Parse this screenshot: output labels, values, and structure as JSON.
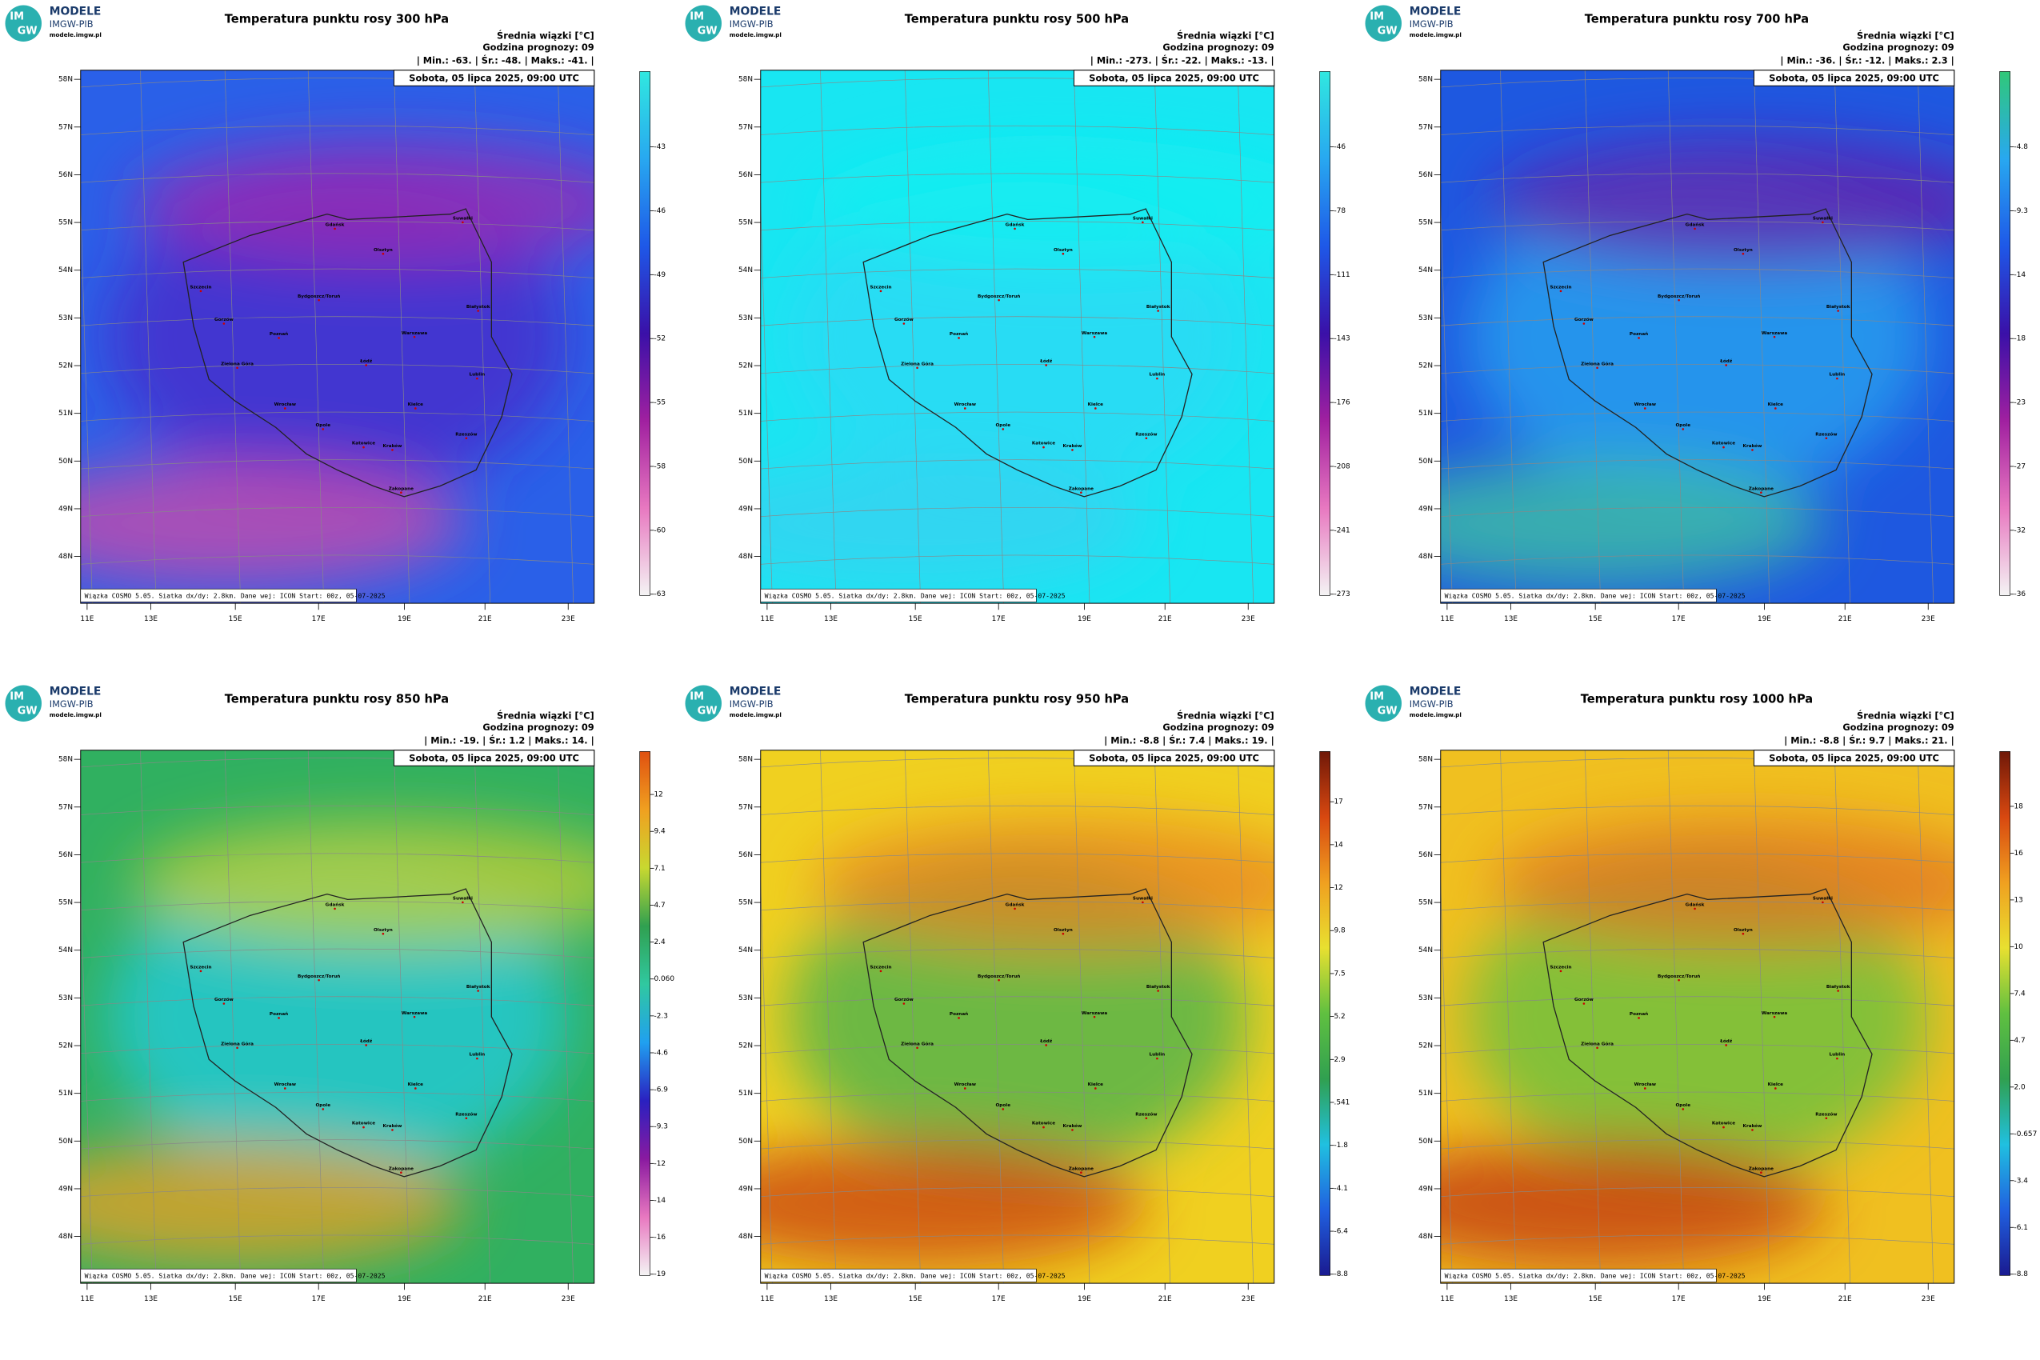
{
  "common": {
    "logo": {
      "mark_top": "IM",
      "mark_bottom": "GW",
      "name": "MODELE",
      "org": "IMGW-PIB",
      "url": "modele.imgw.pl"
    },
    "units": "Średnia wiązki [°C]",
    "forecast_hour": "Godzina prognozy: 09",
    "date": "Sobota, 05 lipca 2025, 09:00 UTC",
    "footer": "Wiązka COSMO 5.05. Siatka dx/dy: 2.8km. Dane wej: ICON Start: 00z, 05-07-2025",
    "lat_labels": [
      "58N",
      "57N",
      "56N",
      "55N",
      "54N",
      "53N",
      "52N",
      "51N",
      "50N",
      "49N",
      "48N"
    ],
    "lon_labels": [
      "11E",
      "13E",
      "15E",
      "17E",
      "19E",
      "21E",
      "23E"
    ],
    "cities": [
      "Gdańsk",
      "Olsztyn",
      "Suwałki",
      "Szczecin",
      "Bydgoszcz/Toruń",
      "Białystok",
      "Gorzów",
      "Poznań",
      "Warszawa",
      "Zielona Góra",
      "Łódź",
      "Lublin",
      "Wrocław",
      "Opole",
      "Kielce",
      "Rzeszów",
      "Katowice",
      "Kraków",
      "Zakopane"
    ]
  },
  "panels": [
    {
      "title": "Temperatura punktu rosy 300 hPa",
      "stats": "| Min.: -63. | Śr.: -48. | Maks.: -41. |",
      "colorbar_ticks": [
        -63,
        -60,
        -58,
        -55,
        -52,
        -49,
        -46,
        -43
      ],
      "colorbar_colors": [
        "#f4f4f4",
        "#e878c0",
        "#a020a0",
        "#3a10a8",
        "#1e58e8",
        "#28a8f0",
        "#30e8e0"
      ],
      "map_colors": [
        "#2a60e8",
        "#4a2ac8",
        "#a02ab0",
        "#d04aa8"
      ]
    },
    {
      "title": "Temperatura punktu rosy 500 hPa",
      "stats": "| Min.: -273. | Śr.: -22. | Maks.: -13. |",
      "colorbar_ticks": [
        -273,
        -241,
        -208,
        -176,
        -143,
        -111,
        -78,
        -46
      ],
      "colorbar_colors": [
        "#f4f4f4",
        "#e878c0",
        "#a020a0",
        "#3a10a8",
        "#1e58e8",
        "#28a8f0",
        "#30e8e0"
      ],
      "map_colors": [
        "#18e6f2",
        "#2cd8f4",
        "#10f0f0",
        "#38d0f0"
      ]
    },
    {
      "title": "Temperatura punktu rosy 700 hPa",
      "stats": "| Min.: -36. | Śr.: -12. | Maks.: 2.3 |",
      "colorbar_ticks": [
        -36,
        -32,
        -27,
        -23,
        -18,
        -14,
        -9.3,
        -4.8
      ],
      "colorbar_colors": [
        "#f4f4f4",
        "#e878c0",
        "#a020a0",
        "#3a10a8",
        "#1e58e8",
        "#28a8f0",
        "#30c878"
      ],
      "map_colors": [
        "#1e58e0",
        "#26a8f0",
        "#6a1aa8",
        "#40c8a0"
      ]
    },
    {
      "title": "Temperatura punktu rosy 850 hPa",
      "stats": "| Min.: -19. | Śr.: 1.2 | Maks.: 14. |",
      "colorbar_ticks": [
        -19,
        -16,
        -14,
        -12,
        -9.3,
        -6.9,
        -4.6,
        -2.3,
        {
          "value": 0.06,
          "label": "0.060"
        },
        2.4,
        4.7,
        7.1,
        9.4,
        12
      ],
      "colorbar_colors": [
        "#f4f4f4",
        "#e878c0",
        "#8a1aa0",
        "#2a20c0",
        "#20a0f0",
        "#30c8a0",
        "#30a050",
        "#c8d830",
        "#f0a020",
        "#e05010"
      ],
      "map_colors": [
        "#30b060",
        "#22cce0",
        "#c8d030",
        "#f0a020"
      ]
    },
    {
      "title": "Temperatura punktu rosy 950 hPa",
      "stats": "| Min.: -8.8 | Śr.: 7.4 | Maks.: 19. |",
      "colorbar_ticks": [
        -8.8,
        -6.4,
        -4.1,
        -1.8,
        {
          "value": 0.541,
          "label": ".541"
        },
        2.9,
        5.2,
        7.5,
        9.8,
        12,
        14,
        17
      ],
      "colorbar_colors": [
        "#1a1a90",
        "#2060e0",
        "#20c0e0",
        "#30a050",
        "#60c040",
        "#e8e030",
        "#f0a020",
        "#d84810",
        "#701808"
      ],
      "map_colors": [
        "#f0d020",
        "#40b050",
        "#e88020",
        "#c83a10"
      ]
    },
    {
      "title": "Temperatura punktu rosy 1000 hPa",
      "stats": "| Min.: -8.8 | Śr.: 9.7 | Maks.: 21. |",
      "colorbar_ticks": [
        -8.8,
        -6.1,
        -3.4,
        -0.657,
        {
          "value": 2,
          "label": "2.0"
        },
        4.7,
        7.4,
        10,
        13,
        16,
        18
      ],
      "colorbar_colors": [
        "#1a1a90",
        "#2060e0",
        "#20c0e0",
        "#30a050",
        "#60c040",
        "#e8e030",
        "#f0a020",
        "#d84810",
        "#701808"
      ],
      "map_colors": [
        "#f0c020",
        "#60c040",
        "#e07020",
        "#c03010"
      ]
    }
  ]
}
